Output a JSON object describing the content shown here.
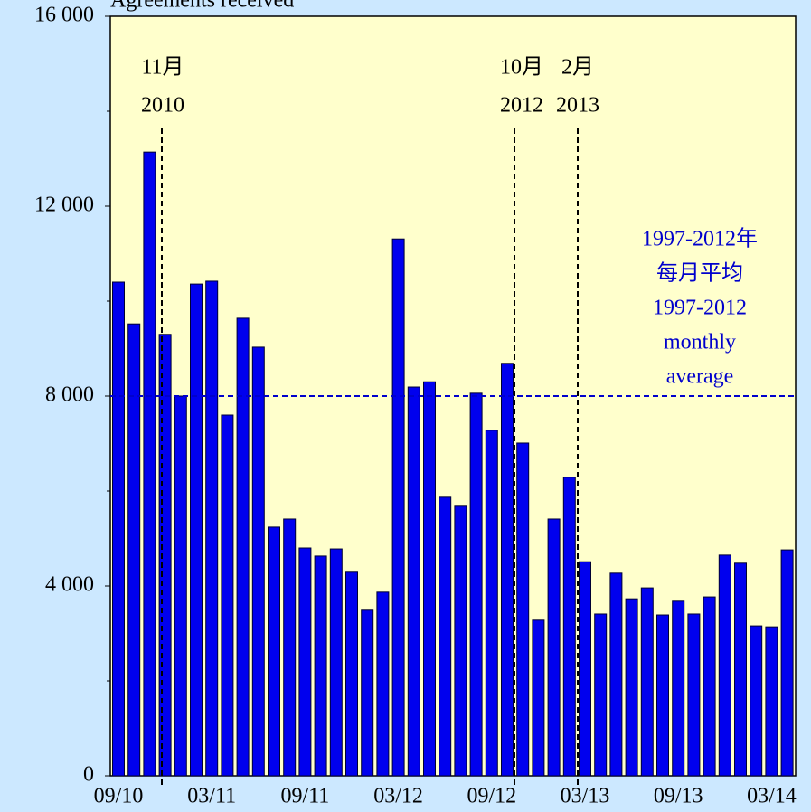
{
  "chart_data": {
    "type": "bar",
    "y_label": "Agreements received",
    "categories": [
      "09/10",
      null,
      null,
      null,
      null,
      null,
      "03/11",
      null,
      null,
      null,
      null,
      null,
      "09/11",
      null,
      null,
      null,
      null,
      null,
      "03/12",
      null,
      null,
      null,
      null,
      null,
      "09/12",
      null,
      null,
      null,
      null,
      null,
      "03/13",
      null,
      null,
      null,
      null,
      null,
      "09/13",
      null,
      null,
      null,
      null,
      null,
      "03/14",
      null
    ],
    "values": [
      10400,
      9520,
      13140,
      9300,
      8000,
      10360,
      10420,
      7600,
      9640,
      9030,
      5240,
      5410,
      4800,
      4630,
      4780,
      4290,
      3490,
      3870,
      11310,
      8190,
      8300,
      5870,
      5680,
      8060,
      7280,
      8690,
      7010,
      3280,
      5410,
      6290,
      4510,
      3410,
      4270,
      3730,
      3960,
      3390,
      3680,
      3410,
      3770,
      4650,
      4480,
      3160,
      3140,
      4760
    ],
    "color": "#0000ee",
    "ylim": [
      0,
      16000
    ],
    "yticks": [
      0,
      {
        "value": 4000,
        "label": "4 000"
      },
      {
        "value": 8000,
        "label": "8 000"
      },
      {
        "value": 12000,
        "label": "12 000"
      },
      {
        "value": 16000,
        "label": "16 000"
      }
    ],
    "yminor_ticks": [
      2000,
      6000,
      10000,
      14000
    ],
    "reference_line": {
      "value": 8000,
      "color": "#0000cc",
      "label": [
        "1997-2012年",
        "每月平均",
        "1997-2012",
        "monthly",
        "average"
      ]
    },
    "events": [
      {
        "label": [
          "11月",
          "2010"
        ]
      },
      {
        "label": [
          "10月",
          "2012"
        ]
      },
      {
        "label": [
          "2月",
          "2013"
        ]
      }
    ]
  }
}
